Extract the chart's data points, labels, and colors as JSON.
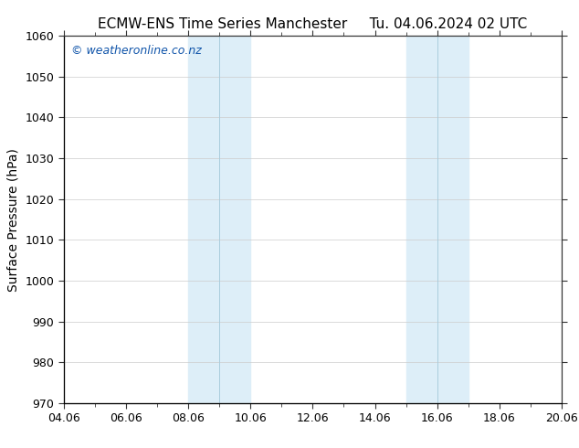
{
  "title_left": "ECMW-ENS Time Series Manchester",
  "title_right": "Tu. 04.06.2024 02 UTC",
  "ylabel": "Surface Pressure (hPa)",
  "ylim": [
    970,
    1060
  ],
  "yticks": [
    970,
    980,
    990,
    1000,
    1010,
    1020,
    1030,
    1040,
    1050,
    1060
  ],
  "xlim": [
    0,
    16
  ],
  "xtick_positions": [
    0,
    2,
    4,
    6,
    8,
    10,
    12,
    14,
    16
  ],
  "xtick_labels": [
    "04.06",
    "06.06",
    "08.06",
    "10.06",
    "12.06",
    "14.06",
    "16.06",
    "18.06",
    "20.06"
  ],
  "xtick_minor_positions": [
    1,
    3,
    5,
    7,
    9,
    11,
    13,
    15
  ],
  "shaded_bands": [
    {
      "xmin": 4,
      "xmax": 6
    },
    {
      "xmin": 11,
      "xmax": 13
    }
  ],
  "band_color": "#ddeef8",
  "band_alpha": 1.0,
  "background_color": "#ffffff",
  "plot_bg_color": "#ffffff",
  "watermark_text": "© weatheronline.co.nz",
  "watermark_color": "#1155aa",
  "grid_color": "#cccccc",
  "title_fontsize": 11,
  "axis_label_fontsize": 10,
  "tick_fontsize": 9,
  "watermark_fontsize": 9,
  "spine_color": "#333333",
  "band_line_color": "#aaccdd"
}
